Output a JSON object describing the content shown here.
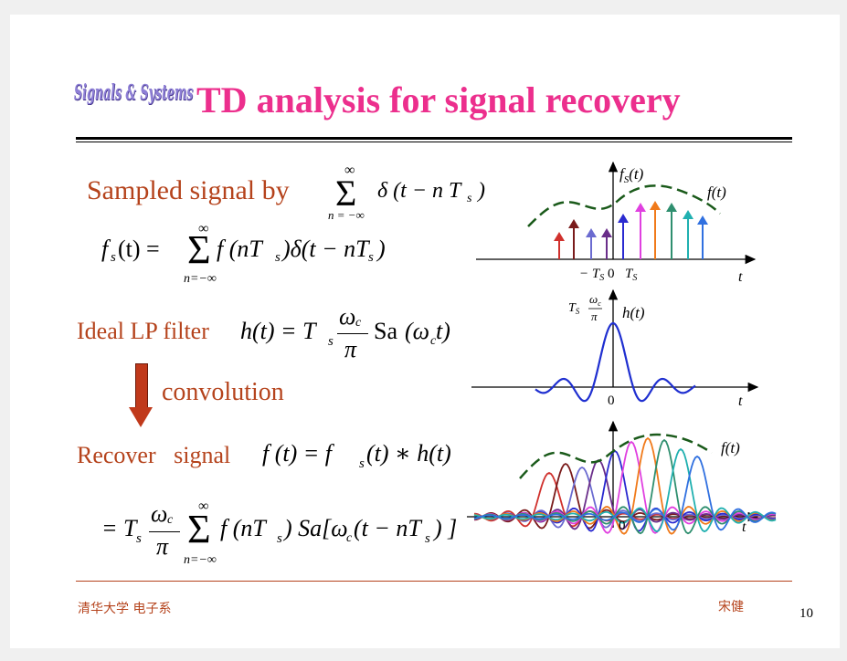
{
  "logo_text": "Signals & Systems",
  "title": "TD analysis for signal recovery",
  "section1": {
    "label": "Sampled signal by",
    "eq_sum_top": "∞",
    "eq_sum_bottom": "n = −∞",
    "eq_delta": "δ (t − n T",
    "eq_delta_sub": "s",
    "eq_delta_close": ")",
    "eq2_lhs": "f",
    "eq2_lhs_sub": "s",
    "eq2_lhs_rest": "(t) =",
    "eq2_sum_top": "∞",
    "eq2_sum_bottom": "n=−∞",
    "eq2_rhs": "f (nT",
    "eq2_rhs_sub": "s",
    "eq2_rhs_rest": ")δ(t − nT",
    "eq2_rhs_sub2": "s",
    "eq2_rhs_close": ")"
  },
  "section2": {
    "label": "Ideal LP filter",
    "eq_lhs": "h(t) = T",
    "eq_lhs_sub": "s",
    "eq_frac_num": "ω",
    "eq_frac_num_sub": "c",
    "eq_frac_den": "π",
    "eq_sa": "Sa",
    "eq_sa_arg": "(ω",
    "eq_sa_arg_sub": "c",
    "eq_sa_arg_rest": " t)"
  },
  "arrow_label": "convolution",
  "section3": {
    "label": "Recover   signal",
    "eq_lhs": "f (t) = f",
    "eq_lhs_sub": "s",
    "eq_lhs_rest": "(t) ∗ h(t)",
    "eq2_start": "= T",
    "eq2_start_sub": "s",
    "eq2_frac_num": "ω",
    "eq2_frac_num_sub": "c",
    "eq2_frac_den": "π",
    "eq2_sum_top": "∞",
    "eq2_sum_bottom": "n=−∞",
    "eq2_rest": "f (nT",
    "eq2_rest_sub": "s",
    "eq2_rest2": ") Sa[ω",
    "eq2_rest2_sub": "c",
    "eq2_rest3": " (t − nT",
    "eq2_rest3_sub": "s",
    "eq2_close": ") ]"
  },
  "plot1": {
    "y_label": "f",
    "y_label_sub": "S",
    "y_label_rest": "(t)",
    "curve_label": "f(t)",
    "tick_neg": "− T",
    "tick_neg_sub": "S",
    "tick_zero": "0",
    "tick_pos": "T",
    "tick_pos_sub": "S",
    "x_label": "t",
    "sample_colors": [
      "#d0312d",
      "#7a1b1b",
      "#6b6bd0",
      "#6a2e8a",
      "#2a2ad0",
      "#e040e0",
      "#f07a1a",
      "#2f8f6f",
      "#20b0b0",
      "#3070e0"
    ]
  },
  "plot2": {
    "y_label": "h(t)",
    "peak_label_T": "T",
    "peak_label_T_sub": "S",
    "peak_label_num": "ω",
    "peak_label_num_sub": "c",
    "peak_label_den": "π",
    "tick_zero": "0",
    "x_label": "t",
    "curve_color": "#1f2fd0"
  },
  "plot3": {
    "curve_label": "f(t)",
    "tick_zero": "0",
    "x_label": "t",
    "colors": [
      "#d0312d",
      "#7a1b1b",
      "#6b6bd0",
      "#6a2e8a",
      "#2a2ad0",
      "#e040e0",
      "#f07a1a",
      "#2f8f6f",
      "#20b0b0",
      "#3070e0"
    ]
  },
  "footer": {
    "left": "清华大学 电子系",
    "right": "宋健",
    "page": "10"
  }
}
